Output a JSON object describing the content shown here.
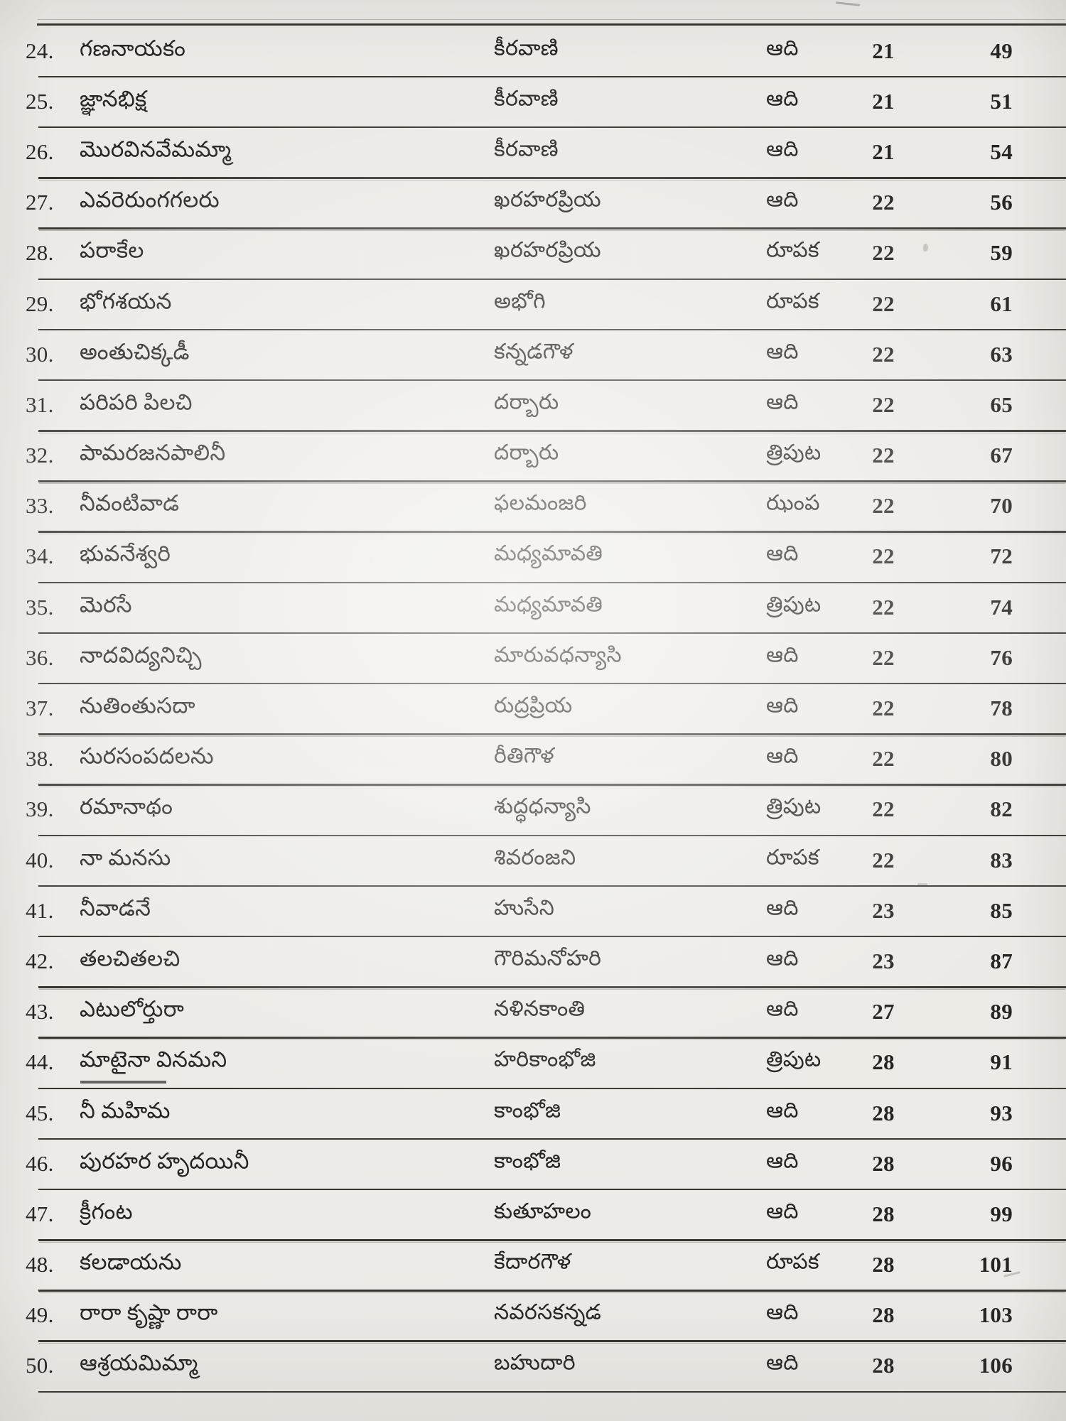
{
  "document": {
    "kind": "scanned index page of a Telugu music book",
    "language": "Telugu",
    "header_visible": false,
    "row_range_shown": "24 to 50",
    "columns": [
      "serial",
      "song",
      "raga",
      "tala",
      "mela",
      "page"
    ]
  },
  "colors": {
    "paper": "#f1efeb",
    "paper_edge": "#e3e1dd",
    "ink": "#232220",
    "rule_line": "#35322e"
  },
  "table": {
    "rows": [
      {
        "serial": "24.",
        "song": "గణనాయకం",
        "raga": "కీరవాణి",
        "tala": "ఆది",
        "mela": "21",
        "page": "49"
      },
      {
        "serial": "25.",
        "song": "జ్ఞానభిక్ష",
        "raga": "కీరవాణి",
        "tala": "ఆది",
        "mela": "21",
        "page": "51"
      },
      {
        "serial": "26.",
        "song": "మొరవినవేమమ్మా",
        "raga": "కీరవాణి",
        "tala": "ఆది",
        "mela": "21",
        "page": "54"
      },
      {
        "serial": "27.",
        "song": "ఎవరెరుంగగలరు",
        "raga": "ఖరహరప్రియ",
        "tala": "ఆది",
        "mela": "22",
        "page": "56"
      },
      {
        "serial": "28.",
        "song": "పరాకేల",
        "raga": "ఖరహరప్రియ",
        "tala": "రూపక",
        "mela": "22",
        "page": "59"
      },
      {
        "serial": "29.",
        "song": "భోగశయన",
        "raga": "అభోగి",
        "tala": "రూపక",
        "mela": "22",
        "page": "61"
      },
      {
        "serial": "30.",
        "song": "అంతుచిక్కడీ",
        "raga": "కన్నడగౌళ",
        "tala": "ఆది",
        "mela": "22",
        "page": "63"
      },
      {
        "serial": "31.",
        "song": "పరిపరి పిలచి",
        "raga": "దర్బారు",
        "tala": "ఆది",
        "mela": "22",
        "page": "65"
      },
      {
        "serial": "32.",
        "song": "పామరజనపాలినీ",
        "raga": "దర్బారు",
        "tala": "త్రిపుట",
        "mela": "22",
        "page": "67"
      },
      {
        "serial": "33.",
        "song": "నీవంటివాడ",
        "raga": "ఫలమంజరి",
        "tala": "ఝంప",
        "mela": "22",
        "page": "70"
      },
      {
        "serial": "34.",
        "song": "భువనేశ్వరి",
        "raga": "మధ్యమావతి",
        "tala": "ఆది",
        "mela": "22",
        "page": "72"
      },
      {
        "serial": "35.",
        "song": "మెరసే",
        "raga": "మధ్యమావతి",
        "tala": "త్రిపుట",
        "mela": "22",
        "page": "74"
      },
      {
        "serial": "36.",
        "song": "నాదవిద్యనిచ్చి",
        "raga": "మారువధన్యాసి",
        "tala": "ఆది",
        "mela": "22",
        "page": "76"
      },
      {
        "serial": "37.",
        "song": "నుతింతుసదా",
        "raga": "రుద్రప్రియ",
        "tala": "ఆది",
        "mela": "22",
        "page": "78"
      },
      {
        "serial": "38.",
        "song": "సురసంపదలను",
        "raga": "రీతిగౌళ",
        "tala": "ఆది",
        "mela": "22",
        "page": "80"
      },
      {
        "serial": "39.",
        "song": "రమానాథం",
        "raga": "శుద్ధధన్యాసి",
        "tala": "త్రిపుట",
        "mela": "22",
        "page": "82"
      },
      {
        "serial": "40.",
        "song": "నా మనసు",
        "raga": "శివరంజని",
        "tala": "రూపక",
        "mela": "22",
        "page": "83"
      },
      {
        "serial": "41.",
        "song": "నీవాడనే",
        "raga": "హుసేని",
        "tala": "ఆది",
        "mela": "23",
        "page": "85"
      },
      {
        "serial": "42.",
        "song": "తలచితలచి",
        "raga": "గౌరిమనోహరి",
        "tala": "ఆది",
        "mela": "23",
        "page": "87"
      },
      {
        "serial": "43.",
        "song": "ఎటులోర్తురా",
        "raga": "నళినకాంతి",
        "tala": "ఆది",
        "mela": "27",
        "page": "89"
      },
      {
        "serial": "44.",
        "song": "మాటైనా వినమని",
        "raga": "హరికాంభోజి",
        "tala": "త్రిపుట",
        "mela": "28",
        "page": "91"
      },
      {
        "serial": "45.",
        "song": "నీ మహిమ",
        "raga": "కాంభోజి",
        "tala": "ఆది",
        "mela": "28",
        "page": "93"
      },
      {
        "serial": "46.",
        "song": "పురహర హృదయినీ",
        "raga": "కాంభోజి",
        "tala": "ఆది",
        "mela": "28",
        "page": "96"
      },
      {
        "serial": "47.",
        "song": "క్రీగంట",
        "raga": "కుతూహలం",
        "tala": "ఆది",
        "mela": "28",
        "page": "99"
      },
      {
        "serial": "48.",
        "song": "కలడాయను",
        "raga": "కేదారగౌళ",
        "tala": "రూపక",
        "mela": "28",
        "page": "101"
      },
      {
        "serial": "49.",
        "song": "రారా కృష్ణా రారా",
        "raga": "నవరసకన్నడ",
        "tala": "ఆది",
        "mela": "28",
        "page": "103"
      },
      {
        "serial": "50.",
        "song": "ఆశ్రయమిమ్మా",
        "raga": "బహుదారి",
        "tala": "ఆది",
        "mela": "28",
        "page": "106"
      }
    ]
  }
}
